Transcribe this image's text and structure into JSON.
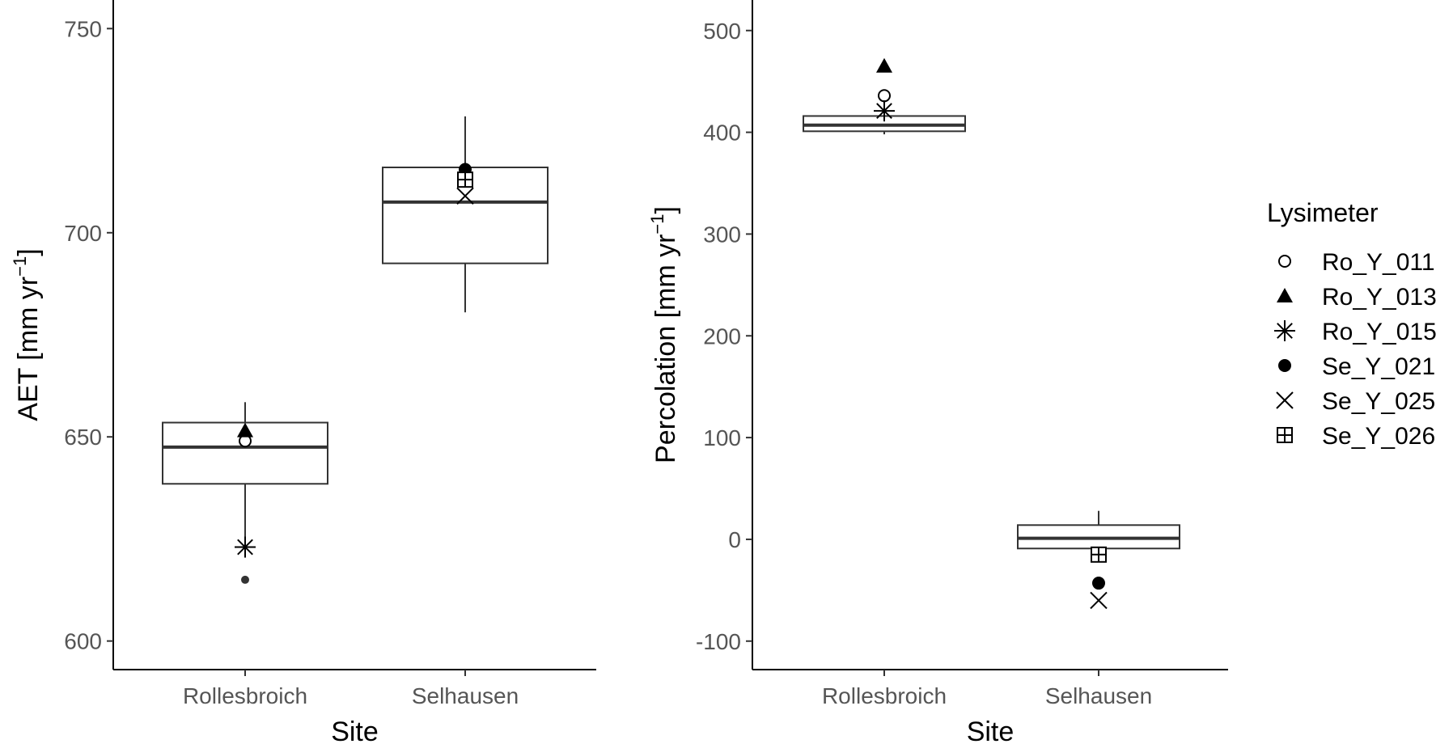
{
  "legend": {
    "title": "Lysimeter",
    "entries": [
      {
        "name": "Ro_Y_011",
        "shape": "open-circle"
      },
      {
        "name": "Ro_Y_013",
        "shape": "filled-triangle"
      },
      {
        "name": "Ro_Y_015",
        "shape": "asterisk"
      },
      {
        "name": "Se_Y_021",
        "shape": "filled-circle"
      },
      {
        "name": "Se_Y_025",
        "shape": "cross"
      },
      {
        "name": "Se_Y_026",
        "shape": "square-plus"
      }
    ]
  },
  "chart_data": [
    {
      "type": "box",
      "ylabel": "AET [mm yr",
      "ylabel_sup": "−1",
      "ylabel_close": "]",
      "xlabel": "Site",
      "categories": [
        "Rollesbroich",
        "Selhausen"
      ],
      "ylim": [
        593,
        757
      ],
      "yticks": [
        600,
        650,
        700,
        750
      ],
      "boxes": [
        {
          "category": "Rollesbroich",
          "whisker_low": 623,
          "q1": 638.5,
          "median": 647.5,
          "q3": 653.5,
          "whisker_high": 658.5,
          "outliers": [
            615
          ]
        },
        {
          "category": "Selhausen",
          "whisker_low": 680.5,
          "q1": 692.5,
          "median": 707.5,
          "q3": 716,
          "whisker_high": 728.5,
          "outliers": []
        }
      ],
      "points": [
        {
          "series": "Ro_Y_011",
          "category": "Rollesbroich",
          "y": 649
        },
        {
          "series": "Ro_Y_013",
          "category": "Rollesbroich",
          "y": 651.5
        },
        {
          "series": "Ro_Y_015",
          "category": "Rollesbroich",
          "y": 623
        },
        {
          "series": "Se_Y_021",
          "category": "Selhausen",
          "y": 715.5
        },
        {
          "series": "Se_Y_025",
          "category": "Selhausen",
          "y": 709
        },
        {
          "series": "Se_Y_026",
          "category": "Selhausen",
          "y": 713
        }
      ]
    },
    {
      "type": "box",
      "ylabel": "Percolation [mm yr",
      "ylabel_sup": "−1",
      "ylabel_close": "]",
      "xlabel": "Site",
      "categories": [
        "Rollesbroich",
        "Selhausen"
      ],
      "ylim": [
        -128,
        530
      ],
      "yticks": [
        -100,
        0,
        100,
        200,
        300,
        400,
        500
      ],
      "boxes": [
        {
          "category": "Rollesbroich",
          "whisker_low": 398,
          "q1": 401,
          "median": 407,
          "q3": 416,
          "whisker_high": 420,
          "outliers": []
        },
        {
          "category": "Selhausen",
          "whisker_low": -15,
          "q1": -9,
          "median": 1,
          "q3": 14,
          "whisker_high": 28,
          "outliers": []
        }
      ],
      "points": [
        {
          "series": "Ro_Y_011",
          "category": "Rollesbroich",
          "y": 436
        },
        {
          "series": "Ro_Y_013",
          "category": "Rollesbroich",
          "y": 465
        },
        {
          "series": "Ro_Y_015",
          "category": "Rollesbroich",
          "y": 421
        },
        {
          "series": "Se_Y_021",
          "category": "Selhausen",
          "y": -43
        },
        {
          "series": "Se_Y_025",
          "category": "Selhausen",
          "y": -60
        },
        {
          "series": "Se_Y_026",
          "category": "Selhausen",
          "y": -15
        }
      ]
    }
  ]
}
